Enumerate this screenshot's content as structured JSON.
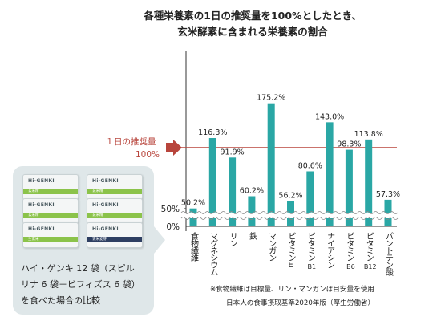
{
  "title": {
    "line1": "各種栄養素の1日の推奨量を100%としたとき、",
    "line2": "玄米酵素に含まれる栄養素の割合"
  },
  "reference_line": {
    "label_line1": "１日の推奨量",
    "label_line2": "100%",
    "color": "#b8453c"
  },
  "colors": {
    "bar": "#2aa7a5",
    "panel": "#dfe7e9",
    "axis": "#333333",
    "band_green": "#8bc34a",
    "band_dark": "#2e3f62"
  },
  "product_panel": {
    "pack_logo": "Hi-GENKI",
    "pack_band_labels": [
      "生玄米",
      "玄米精",
      "玄米麦芽"
    ],
    "caption_lines": [
      "ハイ・ゲンキ 12 袋（スピル",
      "リナ 6 袋＋ビフィズス 6 袋）",
      "を食べた場合の比較"
    ]
  },
  "footnotes": {
    "line1": "※食物繊維は目標量、リン・マンガンは目安量を使用",
    "line2": "日本人の食事摂取基準2020年版（厚生労働省）"
  },
  "chart_data": {
    "type": "bar",
    "title": "各種栄養素の1日の推奨量を100%としたとき、玄米酵素に含まれる栄養素の割合",
    "xlabel": "",
    "ylabel": "",
    "y_ticks": [
      "0%",
      "50%"
    ],
    "ylim": [
      0,
      185
    ],
    "axis_break_between": [
      50,
      100
    ],
    "reference_value": 100,
    "grid": false,
    "categories": [
      "食物繊維",
      "マグネシウム",
      "リン",
      "鉄",
      "マンガン",
      "ビタミンE",
      "ビタミンB1",
      "ナイアシン",
      "ビタミンB6",
      "ビタミンB12",
      "パントテン酸"
    ],
    "values": [
      50.2,
      116.3,
      91.9,
      60.2,
      175.2,
      56.2,
      80.6,
      143.0,
      98.3,
      113.8,
      57.3
    ],
    "value_labels": [
      "50.2%",
      "116.3%",
      "91.9%",
      "60.2%",
      "175.2%",
      "56.2%",
      "80.6%",
      "143.0%",
      "98.3%",
      "113.8%",
      "57.3%"
    ],
    "category_labels": [
      {
        "main": "食物繊維",
        "sub": ""
      },
      {
        "main": "マグネシウム",
        "sub": ""
      },
      {
        "main": "リン",
        "sub": ""
      },
      {
        "main": "鉄",
        "sub": ""
      },
      {
        "main": "マンガン",
        "sub": ""
      },
      {
        "main": "ビタミンE",
        "sub": ""
      },
      {
        "main": "ビタミン",
        "sub": "B1"
      },
      {
        "main": "ナイアシン",
        "sub": ""
      },
      {
        "main": "ビタミン",
        "sub": "B6"
      },
      {
        "main": "ビタミン",
        "sub": "B12"
      },
      {
        "main": "パントテン酸",
        "sub": ""
      }
    ]
  }
}
